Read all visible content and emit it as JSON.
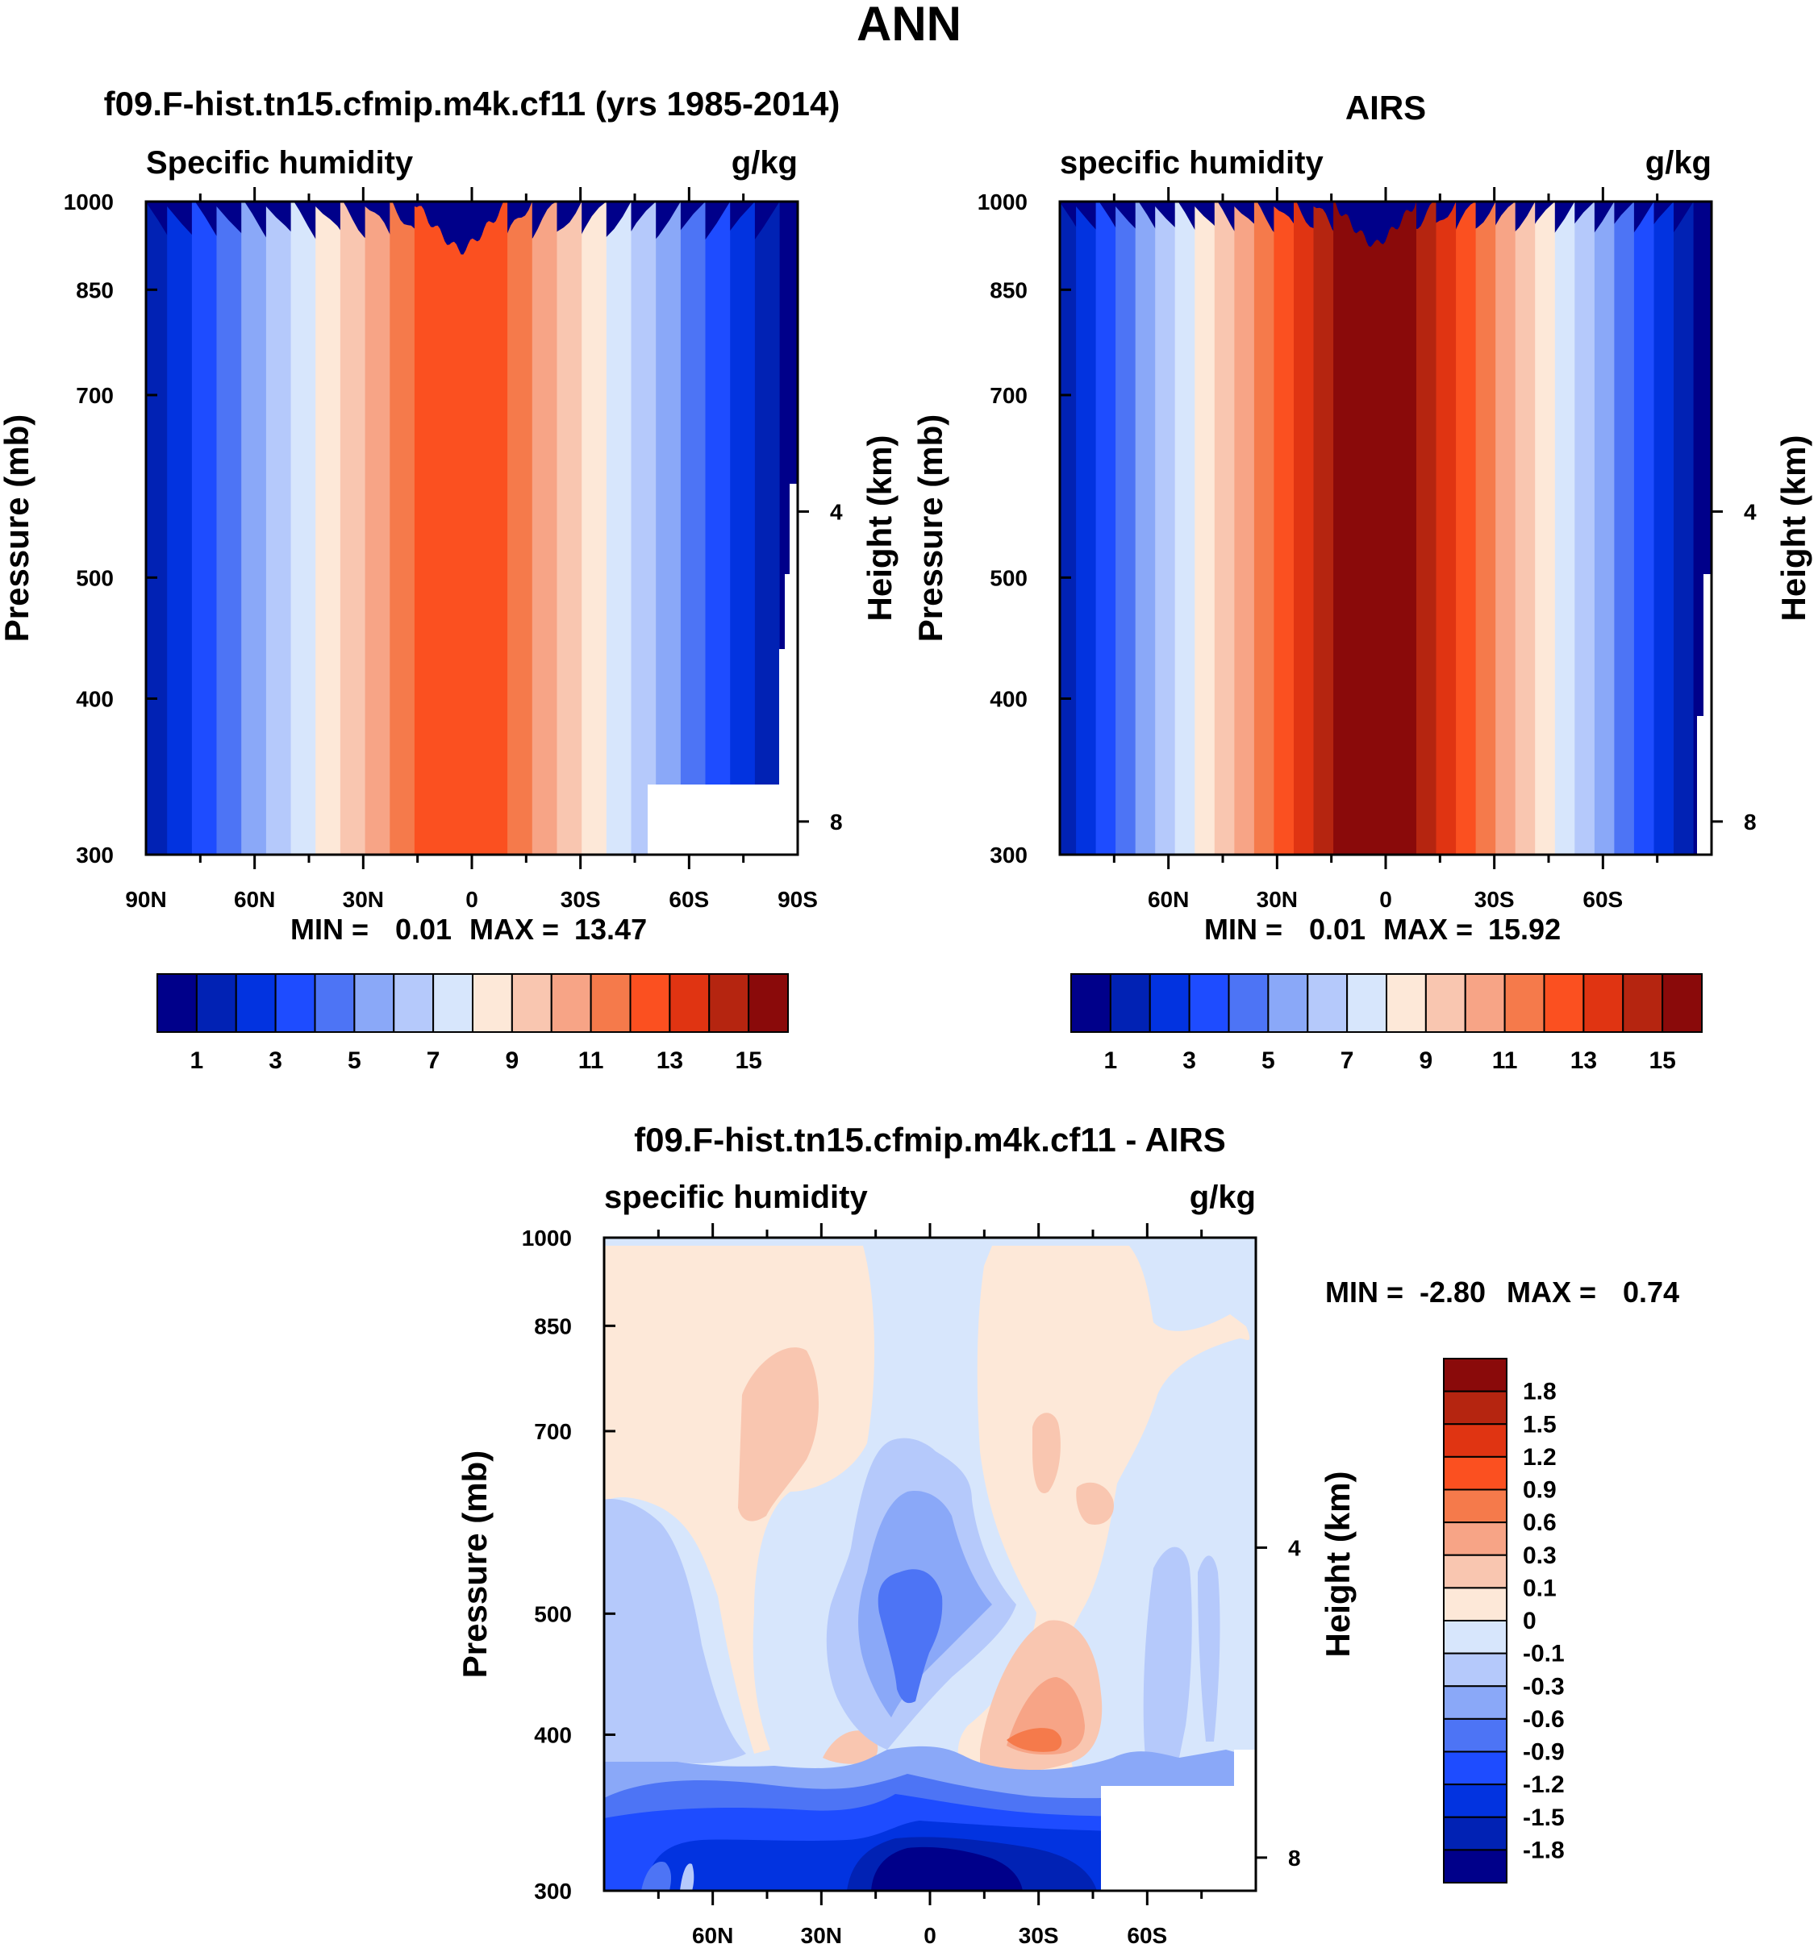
{
  "figure_title": "ANN",
  "colors": {
    "abs_palette": [
      "#00008a",
      "#0122b4",
      "#0233e0",
      "#1e4cff",
      "#4d74f5",
      "#8aa8f8",
      "#b5c9fb",
      "#d7e6fc",
      "#fde8d8",
      "#f9c6b0",
      "#f7a486",
      "#f57a4b",
      "#fb5020",
      "#e03412",
      "#b52510",
      "#8a0a0a"
    ],
    "diff_palette": [
      "#00008a",
      "#0122b4",
      "#0233e0",
      "#1e4cff",
      "#4d74f5",
      "#8aa8f8",
      "#b5c9fb",
      "#d7e6fc",
      "#fde8d8",
      "#f9c6b0",
      "#f7a486",
      "#f57a4b",
      "#fb5020",
      "#e03412",
      "#b52510",
      "#8a0a0a"
    ]
  },
  "chart_data": [
    {
      "type": "heatmap",
      "title": "f09.F-hist.tn15.cfmip.m4k.cf11 (yrs 1985-2014)",
      "left_label": "Specific humidity",
      "right_label": "g/kg",
      "ylabel": "Pressure (mb)",
      "ylabel_right": "Height (km)",
      "x_ticks": [
        "90N",
        "60N",
        "30N",
        "0",
        "30S",
        "60S",
        "90S"
      ],
      "x_tick_values": [
        90,
        60,
        30,
        0,
        -30,
        -60,
        -90
      ],
      "xlim": [
        90,
        -90
      ],
      "y_ticks": [
        "300",
        "400",
        "500",
        "700",
        "850",
        "1000"
      ],
      "y_tick_values": [
        300,
        400,
        500,
        700,
        850,
        1000
      ],
      "ylim": [
        1000,
        300
      ],
      "height_ticks": [
        "8",
        "4"
      ],
      "height_tick_values": [
        8,
        4
      ],
      "min_label": "MIN =",
      "min_value": "0.01",
      "max_label": "MAX =",
      "max_value": "13.47",
      "peak_level": 12,
      "colorbar_labels": [
        "1",
        "3",
        "5",
        "7",
        "9",
        "11",
        "13",
        "15"
      ],
      "colorbar_levels": [
        0.5,
        1,
        2,
        3,
        4,
        5,
        6,
        7,
        8,
        9,
        10,
        11,
        12,
        13,
        14,
        15
      ]
    },
    {
      "type": "heatmap",
      "title": "AIRS",
      "left_label": "specific humidity",
      "right_label": "g/kg",
      "ylabel": "Pressure (mb)",
      "ylabel_right": "Height (km)",
      "x_ticks": [
        "60N",
        "30N",
        "0",
        "30S",
        "60S"
      ],
      "x_tick_values": [
        60,
        30,
        0,
        -30,
        -60
      ],
      "xlim": [
        90,
        -90
      ],
      "y_ticks": [
        "300",
        "400",
        "500",
        "700",
        "850",
        "1000"
      ],
      "y_tick_values": [
        300,
        400,
        500,
        700,
        850,
        1000
      ],
      "ylim": [
        1000,
        300
      ],
      "height_ticks": [
        "8",
        "4"
      ],
      "height_tick_values": [
        8,
        4
      ],
      "min_label": "MIN =",
      "min_value": "0.01",
      "max_label": "MAX =",
      "max_value": "15.92",
      "peak_level": 15,
      "colorbar_labels": [
        "1",
        "3",
        "5",
        "7",
        "9",
        "11",
        "13",
        "15"
      ],
      "colorbar_levels": [
        0.5,
        1,
        2,
        3,
        4,
        5,
        6,
        7,
        8,
        9,
        10,
        11,
        12,
        13,
        14,
        15
      ]
    },
    {
      "type": "heatmap",
      "title": "f09.F-hist.tn15.cfmip.m4k.cf11 - AIRS",
      "left_label": "specific humidity",
      "right_label": "g/kg",
      "ylabel": "Pressure (mb)",
      "ylabel_right": "Height (km)",
      "x_ticks": [
        "60N",
        "30N",
        "0",
        "30S",
        "60S"
      ],
      "x_tick_values": [
        60,
        30,
        0,
        -30,
        -60
      ],
      "xlim": [
        90,
        -90
      ],
      "y_ticks": [
        "300",
        "400",
        "500",
        "700",
        "850",
        "1000"
      ],
      "y_tick_values": [
        300,
        400,
        500,
        700,
        850,
        1000
      ],
      "ylim": [
        1000,
        300
      ],
      "height_ticks": [
        "8",
        "4"
      ],
      "height_tick_values": [
        8,
        4
      ],
      "min_label": "MIN =",
      "min_value": "-2.80",
      "max_label": "MAX =",
      "max_value": "0.74",
      "colorbar_labels": [
        "1.8",
        "1.5",
        "1.2",
        "0.9",
        "0.6",
        "0.3",
        "0.1",
        "0",
        "-0.1",
        "-0.3",
        "-0.6",
        "-0.9",
        "-1.2",
        "-1.5",
        "-1.8"
      ],
      "colorbar_levels": [
        -1.8,
        -1.5,
        -1.2,
        -0.9,
        -0.6,
        -0.3,
        -0.1,
        0,
        0.1,
        0.3,
        0.6,
        0.9,
        1.2,
        1.5,
        1.8
      ]
    }
  ]
}
